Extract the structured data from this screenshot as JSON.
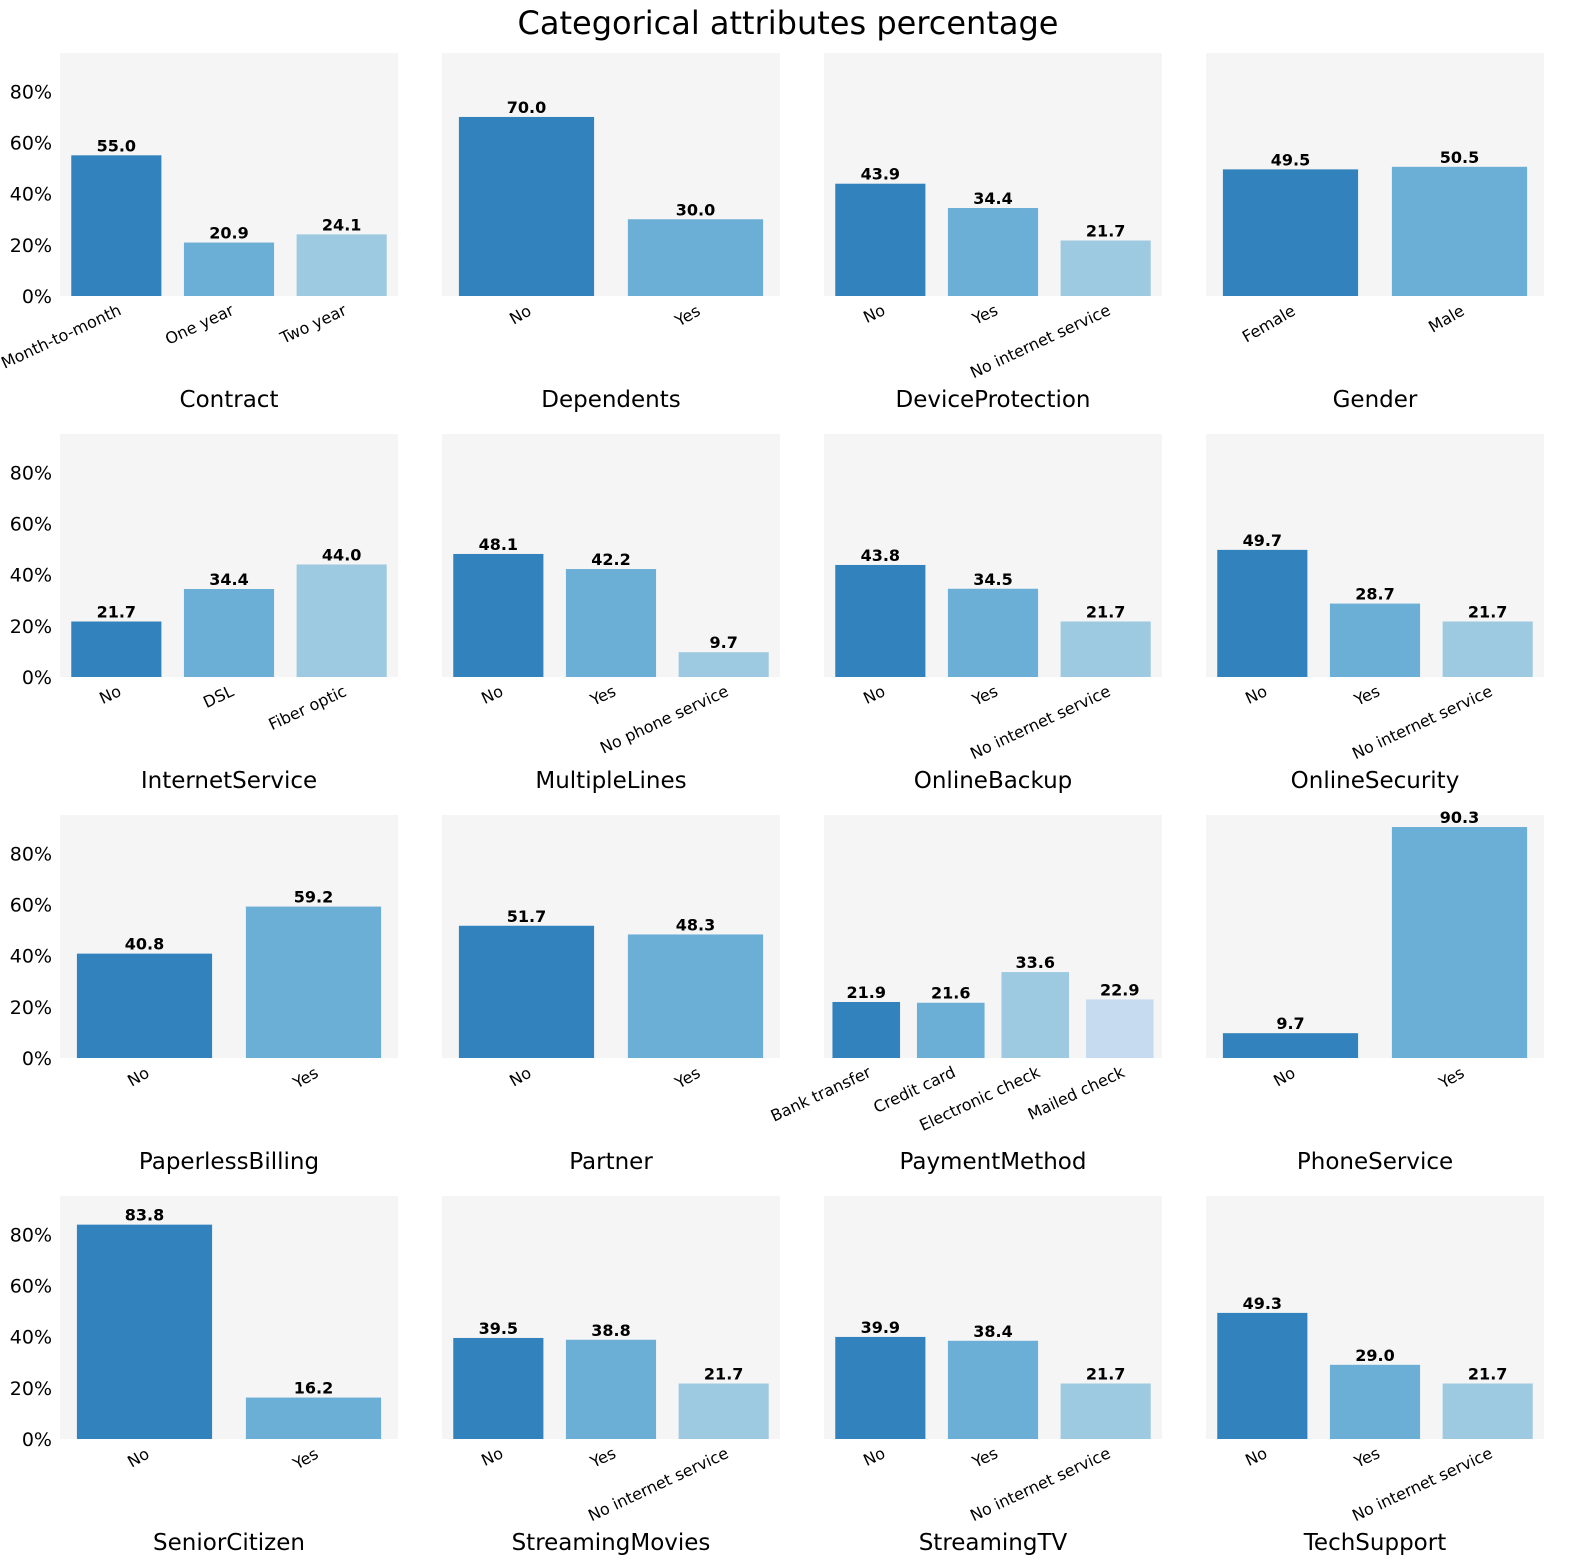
{
  "chart_title": "Categorical attributes percentage",
  "colors": [
    "#3182bd",
    "#6baed6",
    "#9ecae1",
    "#c6dbef"
  ],
  "background_color": "#f5f5f5",
  "y_ticks": [
    "0%",
    "20%",
    "40%",
    "60%",
    "80%"
  ],
  "chart_data": [
    {
      "type": "bar",
      "xlabel": "Contract",
      "categories": [
        "Month-to-month",
        "One year",
        "Two year"
      ],
      "values": [
        55.0,
        20.9,
        24.1
      ],
      "value_labels": [
        "55.0",
        "20.9",
        "24.1"
      ],
      "ylim": [
        0,
        95
      ]
    },
    {
      "type": "bar",
      "xlabel": "Dependents",
      "categories": [
        "No",
        "Yes"
      ],
      "values": [
        70.0,
        30.0
      ],
      "value_labels": [
        "70.0",
        "30.0"
      ],
      "ylim": [
        0,
        95
      ]
    },
    {
      "type": "bar",
      "xlabel": "DeviceProtection",
      "categories": [
        "No",
        "Yes",
        "No internet service"
      ],
      "values": [
        43.9,
        34.4,
        21.7
      ],
      "value_labels": [
        "43.9",
        "34.4",
        "21.7"
      ],
      "ylim": [
        0,
        95
      ]
    },
    {
      "type": "bar",
      "xlabel": "Gender",
      "categories": [
        "Female",
        "Male"
      ],
      "values": [
        49.5,
        50.5
      ],
      "value_labels": [
        "49.5",
        "50.5"
      ],
      "ylim": [
        0,
        95
      ]
    },
    {
      "type": "bar",
      "xlabel": "InternetService",
      "categories": [
        "No",
        "DSL",
        "Fiber optic"
      ],
      "values": [
        21.7,
        34.4,
        44.0
      ],
      "value_labels": [
        "21.7",
        "34.4",
        "44.0"
      ],
      "ylim": [
        0,
        95
      ]
    },
    {
      "type": "bar",
      "xlabel": "MultipleLines",
      "categories": [
        "No",
        "Yes",
        "No phone service"
      ],
      "values": [
        48.1,
        42.2,
        9.7
      ],
      "value_labels": [
        "48.1",
        "42.2",
        "9.7"
      ],
      "ylim": [
        0,
        95
      ]
    },
    {
      "type": "bar",
      "xlabel": "OnlineBackup",
      "categories": [
        "No",
        "Yes",
        "No internet service"
      ],
      "values": [
        43.8,
        34.5,
        21.7
      ],
      "value_labels": [
        "43.8",
        "34.5",
        "21.7"
      ],
      "ylim": [
        0,
        95
      ]
    },
    {
      "type": "bar",
      "xlabel": "OnlineSecurity",
      "categories": [
        "No",
        "Yes",
        "No internet service"
      ],
      "values": [
        49.7,
        28.7,
        21.7
      ],
      "value_labels": [
        "49.7",
        "28.7",
        "21.7"
      ],
      "ylim": [
        0,
        95
      ]
    },
    {
      "type": "bar",
      "xlabel": "PaperlessBilling",
      "categories": [
        "No",
        "Yes"
      ],
      "values": [
        40.8,
        59.2
      ],
      "value_labels": [
        "40.8",
        "59.2"
      ],
      "ylim": [
        0,
        95
      ]
    },
    {
      "type": "bar",
      "xlabel": "Partner",
      "categories": [
        "No",
        "Yes"
      ],
      "values": [
        51.7,
        48.3
      ],
      "value_labels": [
        "51.7",
        "48.3"
      ],
      "ylim": [
        0,
        95
      ]
    },
    {
      "type": "bar",
      "xlabel": "PaymentMethod",
      "categories": [
        "Bank transfer",
        "Credit card",
        "Electronic check",
        "Mailed check"
      ],
      "values": [
        21.9,
        21.6,
        33.6,
        22.9
      ],
      "value_labels": [
        "21.9",
        "21.6",
        "33.6",
        "22.9"
      ],
      "ylim": [
        0,
        95
      ]
    },
    {
      "type": "bar",
      "xlabel": "PhoneService",
      "categories": [
        "No",
        "Yes"
      ],
      "values": [
        9.7,
        90.3
      ],
      "value_labels": [
        "9.7",
        "90.3"
      ],
      "ylim": [
        0,
        95
      ]
    },
    {
      "type": "bar",
      "xlabel": "SeniorCitizen",
      "categories": [
        "No",
        "Yes"
      ],
      "values": [
        83.8,
        16.2
      ],
      "value_labels": [
        "83.8",
        "16.2"
      ],
      "ylim": [
        0,
        95
      ]
    },
    {
      "type": "bar",
      "xlabel": "StreamingMovies",
      "categories": [
        "No",
        "Yes",
        "No internet service"
      ],
      "values": [
        39.5,
        38.8,
        21.7
      ],
      "value_labels": [
        "39.5",
        "38.8",
        "21.7"
      ],
      "ylim": [
        0,
        95
      ]
    },
    {
      "type": "bar",
      "xlabel": "StreamingTV",
      "categories": [
        "No",
        "Yes",
        "No internet service"
      ],
      "values": [
        39.9,
        38.4,
        21.7
      ],
      "value_labels": [
        "39.9",
        "38.4",
        "21.7"
      ],
      "ylim": [
        0,
        95
      ]
    },
    {
      "type": "bar",
      "xlabel": "TechSupport",
      "categories": [
        "No",
        "Yes",
        "No internet service"
      ],
      "values": [
        49.3,
        29.0,
        21.7
      ],
      "value_labels": [
        "49.3",
        "29.0",
        "21.7"
      ],
      "ylim": [
        0,
        95
      ]
    }
  ]
}
